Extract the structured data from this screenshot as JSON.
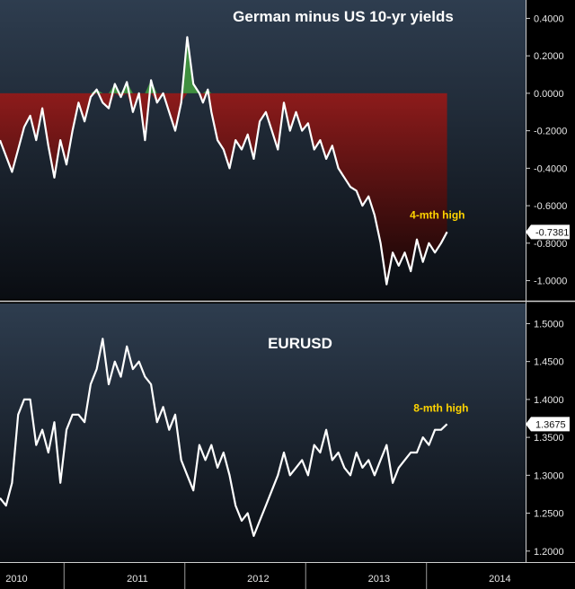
{
  "chart_data": [
    {
      "type": "area",
      "title": "German minus US 10-yr yields",
      "baseline": 0,
      "ylim": [
        -1.05,
        0.45
      ],
      "yticks": [
        "0.4000",
        "0.2000",
        "0.0000",
        "-0.2000",
        "-0.4000",
        "-0.6000",
        "-0.8000",
        "-1.0000"
      ],
      "ytick_values": [
        0.4,
        0.2,
        0.0,
        -0.2,
        -0.4,
        -0.6,
        -0.8,
        -1.0
      ],
      "last_value": "-0.7381",
      "annotation": "4-mth high",
      "colors": {
        "below_fill": "#8b1a1a",
        "above_fill": "#3f8f3f",
        "line": "#ffffff"
      },
      "x": [
        2009.9,
        2010.0,
        2010.05,
        2010.1,
        2010.15,
        2010.2,
        2010.25,
        2010.3,
        2010.35,
        2010.4,
        2010.45,
        2010.5,
        2010.55,
        2010.6,
        2010.65,
        2010.7,
        2010.75,
        2010.8,
        2010.85,
        2010.9,
        2010.95,
        2011.0,
        2011.05,
        2011.1,
        2011.15,
        2011.2,
        2011.25,
        2011.3,
        2011.35,
        2011.4,
        2011.45,
        2011.5,
        2011.55,
        2011.58,
        2011.62,
        2011.65,
        2011.7,
        2011.75,
        2011.8,
        2011.85,
        2011.9,
        2011.95,
        2012.0,
        2012.05,
        2012.1,
        2012.15,
        2012.2,
        2012.25,
        2012.3,
        2012.35,
        2012.4,
        2012.45,
        2012.5,
        2012.55,
        2012.6,
        2012.65,
        2012.7,
        2012.75,
        2012.8,
        2012.85,
        2012.9,
        2012.95,
        2013.0,
        2013.05,
        2013.1,
        2013.15,
        2013.2,
        2013.25,
        2013.3,
        2013.35,
        2013.4,
        2013.45,
        2013.5,
        2013.55,
        2013.6
      ],
      "values": [
        -0.25,
        -0.42,
        -0.3,
        -0.18,
        -0.12,
        -0.25,
        -0.08,
        -0.28,
        -0.45,
        -0.25,
        -0.38,
        -0.2,
        -0.05,
        -0.15,
        -0.02,
        0.02,
        -0.05,
        -0.08,
        0.05,
        -0.02,
        0.06,
        -0.1,
        0.0,
        -0.25,
        0.07,
        -0.05,
        0.0,
        -0.1,
        -0.2,
        -0.05,
        0.3,
        0.05,
        0.0,
        -0.05,
        0.02,
        -0.1,
        -0.25,
        -0.3,
        -0.4,
        -0.25,
        -0.3,
        -0.22,
        -0.35,
        -0.15,
        -0.1,
        -0.2,
        -0.3,
        -0.05,
        -0.2,
        -0.1,
        -0.2,
        -0.16,
        -0.3,
        -0.25,
        -0.35,
        -0.28,
        -0.4,
        -0.45,
        -0.5,
        -0.52,
        -0.6,
        -0.55,
        -0.65,
        -0.8,
        -1.02,
        -0.85,
        -0.92,
        -0.85,
        -0.95,
        -0.78,
        -0.9,
        -0.8,
        -0.85,
        -0.8,
        -0.74
      ]
    },
    {
      "type": "line",
      "title": "EURUSD",
      "ylim": [
        1.195,
        1.51
      ],
      "yticks": [
        "1.5000",
        "1.4500",
        "1.4000",
        "1.3500",
        "1.3000",
        "1.2500",
        "1.2000"
      ],
      "ytick_values": [
        1.5,
        1.45,
        1.4,
        1.35,
        1.3,
        1.25,
        1.2
      ],
      "last_value": "1.3675",
      "annotation": "8-mth high",
      "colors": {
        "line": "#ffffff"
      },
      "x": [
        2009.9,
        2009.95,
        2010.0,
        2010.05,
        2010.1,
        2010.15,
        2010.2,
        2010.25,
        2010.3,
        2010.35,
        2010.4,
        2010.45,
        2010.5,
        2010.55,
        2010.6,
        2010.65,
        2010.7,
        2010.75,
        2010.8,
        2010.85,
        2010.9,
        2010.95,
        2011.0,
        2011.05,
        2011.1,
        2011.15,
        2011.2,
        2011.25,
        2011.3,
        2011.35,
        2011.4,
        2011.45,
        2011.5,
        2011.55,
        2011.6,
        2011.65,
        2011.7,
        2011.75,
        2011.8,
        2011.85,
        2011.9,
        2011.95,
        2012.0,
        2012.05,
        2012.1,
        2012.15,
        2012.2,
        2012.25,
        2012.3,
        2012.35,
        2012.4,
        2012.45,
        2012.5,
        2012.55,
        2012.6,
        2012.65,
        2012.7,
        2012.75,
        2012.8,
        2012.85,
        2012.9,
        2012.95,
        2013.0,
        2013.05,
        2013.1,
        2013.15,
        2013.2,
        2013.25,
        2013.3,
        2013.35,
        2013.4,
        2013.45,
        2013.5,
        2013.55,
        2013.6
      ],
      "values": [
        1.27,
        1.26,
        1.29,
        1.38,
        1.4,
        1.4,
        1.34,
        1.36,
        1.33,
        1.37,
        1.29,
        1.36,
        1.38,
        1.38,
        1.37,
        1.42,
        1.44,
        1.48,
        1.42,
        1.45,
        1.43,
        1.47,
        1.44,
        1.45,
        1.43,
        1.42,
        1.37,
        1.39,
        1.36,
        1.38,
        1.32,
        1.3,
        1.28,
        1.34,
        1.32,
        1.34,
        1.31,
        1.33,
        1.3,
        1.26,
        1.24,
        1.25,
        1.22,
        1.24,
        1.26,
        1.28,
        1.3,
        1.33,
        1.3,
        1.31,
        1.32,
        1.3,
        1.34,
        1.33,
        1.36,
        1.32,
        1.33,
        1.31,
        1.3,
        1.33,
        1.31,
        1.32,
        1.3,
        1.32,
        1.34,
        1.29,
        1.31,
        1.32,
        1.33,
        1.33,
        1.35,
        1.34,
        1.36,
        1.36,
        1.3675
      ]
    }
  ],
  "x_axis": {
    "labels": [
      "2010",
      "2011",
      "2012",
      "2013",
      "2014"
    ],
    "label_years": [
      2010,
      2011,
      2012,
      2013,
      2014
    ],
    "separator_years": [
      2010.43,
      2011.43,
      2012.43,
      2013.43
    ]
  }
}
